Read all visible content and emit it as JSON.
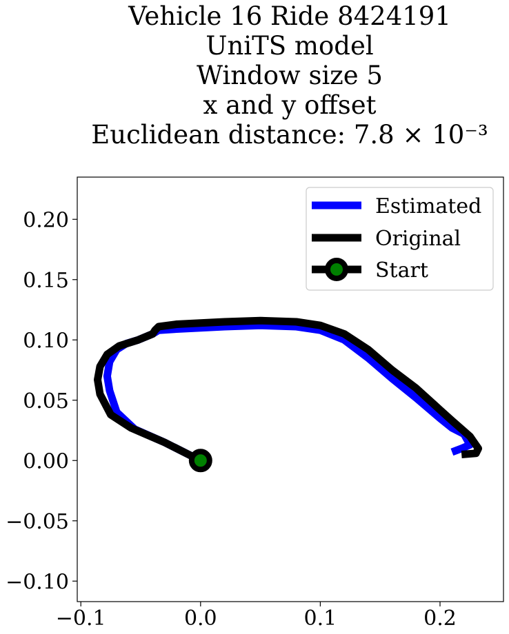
{
  "chart_data": {
    "type": "line",
    "title": [
      "Vehicle 16 Ride 8424191",
      "UniTS model",
      "Window size 5",
      "x and y offset",
      "Euclidean distance: 7.8 × 10⁻³"
    ],
    "xlabel": "",
    "ylabel": "",
    "xlim": [
      -0.103,
      0.253
    ],
    "ylim": [
      -0.117,
      0.235
    ],
    "xticks": [
      -0.1,
      0.0,
      0.1,
      0.2
    ],
    "xtick_labels": [
      "−0.1",
      "0.0",
      "0.1",
      "0.2"
    ],
    "yticks": [
      -0.1,
      -0.05,
      0.0,
      0.05,
      0.1,
      0.15,
      0.2
    ],
    "ytick_labels": [
      "−0.10",
      "−0.05",
      "0.00",
      "0.05",
      "0.10",
      "0.15",
      "0.20"
    ],
    "grid": false,
    "legend_position": "top-right",
    "series": [
      {
        "name": "Estimated",
        "color": "#0000ff",
        "x": [
          0.0,
          -0.03,
          -0.055,
          -0.07,
          -0.076,
          -0.078,
          -0.076,
          -0.07,
          -0.062,
          -0.052,
          -0.04,
          -0.035,
          -0.02,
          0.0,
          0.02,
          0.05,
          0.08,
          0.1,
          0.12,
          0.14,
          0.16,
          0.18,
          0.2,
          0.21,
          0.22,
          0.225,
          0.218,
          0.21
        ],
        "y": [
          0.0,
          0.015,
          0.026,
          0.04,
          0.058,
          0.07,
          0.082,
          0.092,
          0.097,
          0.1,
          0.105,
          0.108,
          0.109,
          0.11,
          0.111,
          0.112,
          0.111,
          0.108,
          0.1,
          0.085,
          0.068,
          0.052,
          0.035,
          0.027,
          0.022,
          0.013,
          0.01,
          0.007
        ]
      },
      {
        "name": "Original",
        "color": "#000000",
        "x": [
          0.0,
          -0.03,
          -0.058,
          -0.075,
          -0.084,
          -0.086,
          -0.084,
          -0.078,
          -0.068,
          -0.052,
          -0.04,
          -0.038,
          -0.035,
          -0.02,
          0.0,
          0.02,
          0.05,
          0.08,
          0.1,
          0.12,
          0.14,
          0.16,
          0.18,
          0.2,
          0.21,
          0.225,
          0.232,
          0.23,
          0.218
        ],
        "y": [
          0.0,
          0.015,
          0.027,
          0.038,
          0.055,
          0.067,
          0.078,
          0.088,
          0.095,
          0.1,
          0.105,
          0.108,
          0.111,
          0.113,
          0.114,
          0.115,
          0.116,
          0.115,
          0.112,
          0.105,
          0.092,
          0.075,
          0.06,
          0.042,
          0.033,
          0.02,
          0.01,
          0.006,
          0.005
        ]
      }
    ],
    "start": {
      "name": "Start",
      "x": 0.0,
      "y": 0.0,
      "color": "#008000"
    }
  }
}
